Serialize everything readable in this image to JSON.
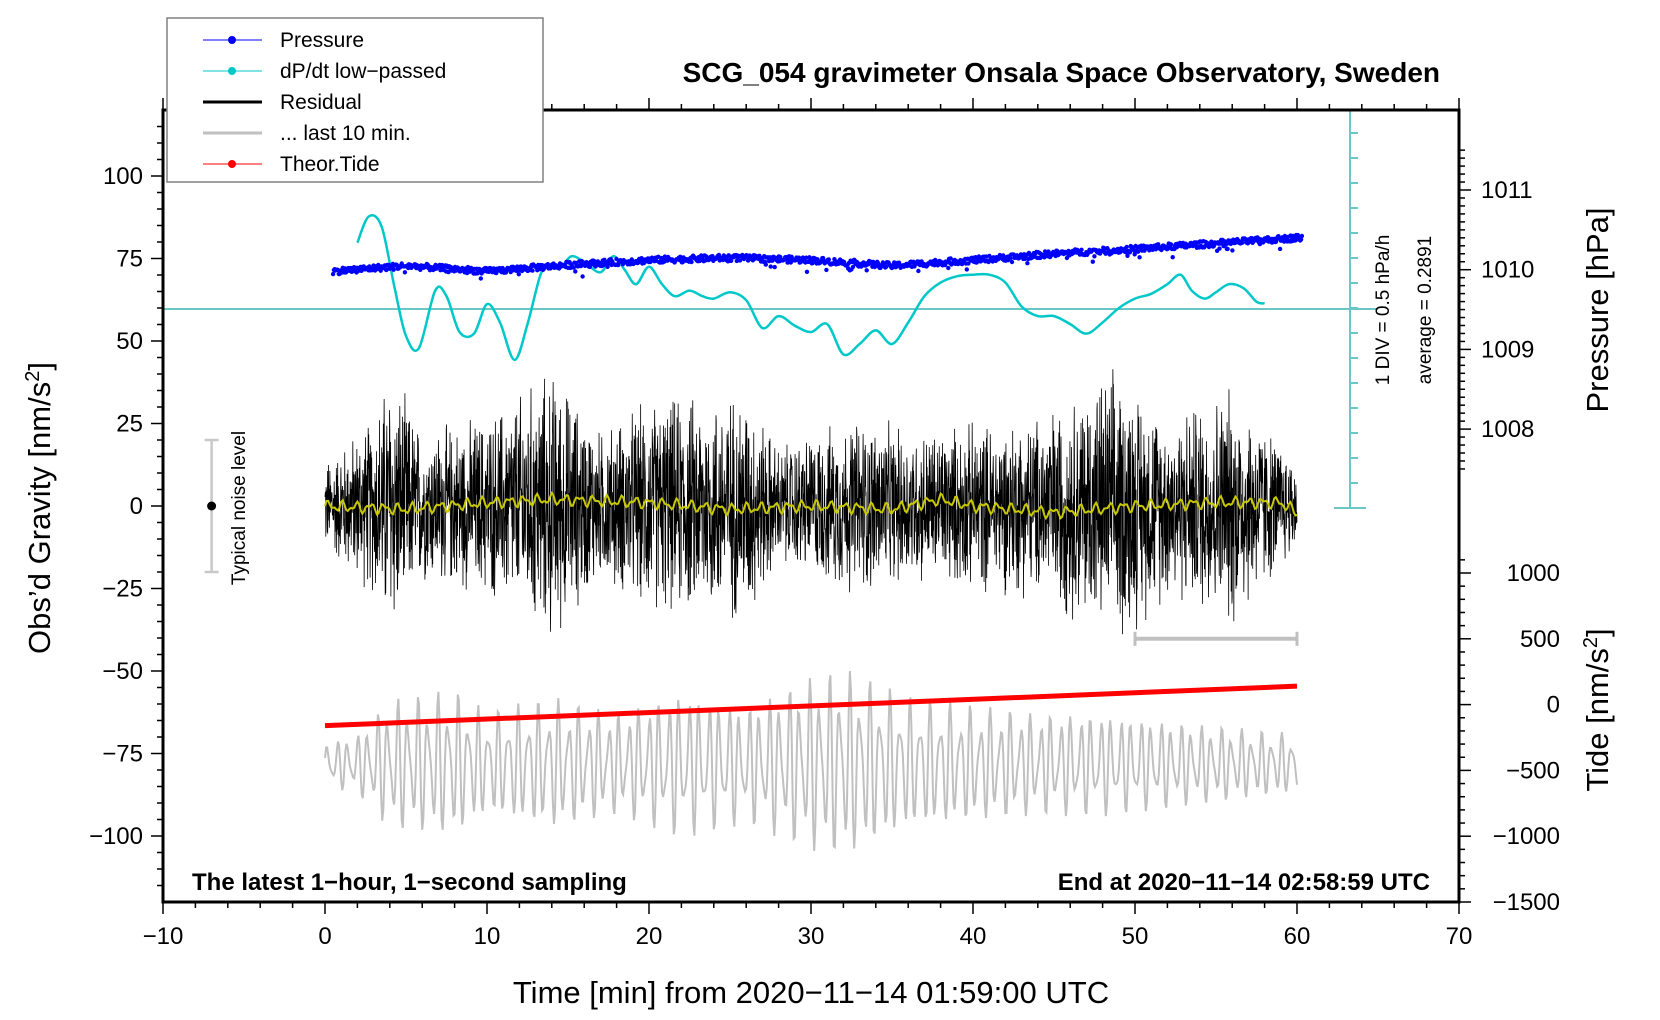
{
  "chart_data": {
    "type": "line",
    "title": "SCG_054 gravimeter Onsala Space Observatory, Sweden",
    "xlabel": "Time [min] from 2020−11−14 01:59:00 UTC",
    "ylabel_left": "Obs’d Gravity [nm/s²]",
    "ylabel_right_top": "Pressure [hPa]",
    "ylabel_right_bottom": "Tide [nm/s²]",
    "xlim": [
      -10,
      70
    ],
    "ylim_left": [
      -120,
      120
    ],
    "ylim_pressure_ref": [
      1008,
      1011
    ],
    "ylim_tide": [
      -1500,
      1000
    ],
    "x_ticks": [
      "−10",
      "0",
      "10",
      "20",
      "30",
      "40",
      "50",
      "60",
      "70"
    ],
    "x_tick_values": [
      -10,
      0,
      10,
      20,
      30,
      40,
      50,
      60,
      70
    ],
    "y_left_ticks": [
      "100",
      "75",
      "50",
      "25",
      "0",
      "−25",
      "−50",
      "−75",
      "−100"
    ],
    "y_left_tick_values": [
      100,
      75,
      50,
      25,
      0,
      -25,
      -50,
      -75,
      -100
    ],
    "y_pressure_ticks": [
      "1011",
      "1010",
      "1009",
      "1008"
    ],
    "y_pressure_tick_values": [
      1011,
      1010,
      1009,
      1008
    ],
    "y_tide_ticks": [
      "1000",
      "500",
      "0",
      "−500",
      "−1000",
      "−1500"
    ],
    "y_tide_tick_values": [
      1000,
      500,
      0,
      -500,
      -1000,
      -1500
    ],
    "legend": {
      "position": "top-left",
      "entries": [
        {
          "label": "Pressure",
          "color": "#0000ff",
          "marker": "dot"
        },
        {
          "label": "dP/dt low−passed",
          "color": "#00c8c8",
          "marker": "dot"
        },
        {
          "label": "Residual",
          "color": "#000000",
          "marker": "line"
        },
        {
          "label": "... last 10 min.",
          "color": "#c0c0c0",
          "marker": "line"
        },
        {
          "label": "Theor.Tide",
          "color": "#ff0000",
          "marker": "dot"
        }
      ]
    },
    "series": [
      {
        "name": "Pressure",
        "axis": "pressure",
        "color": "#0000ff",
        "x": [
          0.5,
          5,
          10,
          15,
          20,
          25,
          30,
          35,
          40,
          45,
          50,
          55,
          60
        ],
        "values": [
          1009.98,
          1010.05,
          1009.98,
          1010.06,
          1010.12,
          1010.15,
          1010.12,
          1010.05,
          1010.12,
          1010.2,
          1010.26,
          1010.33,
          1010.4
        ]
      },
      {
        "name": "dP/dt low-passed",
        "axis": "dpdt",
        "color": "#00c8c8",
        "x": [
          2,
          2.7,
          3.5,
          4.3,
          5,
          5.8,
          6.8,
          7.5,
          8.3,
          9.2,
          10,
          10.8,
          11.7,
          12.5,
          13.3,
          13.8,
          14.5,
          15.2,
          16,
          17,
          17.8,
          18.5,
          19.2,
          20,
          20.8,
          21.6,
          22.5,
          23.3,
          24,
          25,
          26,
          27,
          28,
          29,
          30,
          31,
          32,
          33,
          34,
          35,
          36,
          37,
          38,
          39,
          40,
          41,
          42,
          43,
          44,
          45,
          46,
          47,
          48,
          49,
          50,
          51,
          52,
          52.8,
          53.5,
          54.3,
          55,
          55.8,
          56.7,
          57.5,
          58
        ],
        "values": [
          1.12,
          1.45,
          1.32,
          0.55,
          -0.05,
          -0.2,
          0.52,
          0.45,
          0.0,
          -0.02,
          0.35,
          0.12,
          -0.35,
          0.1,
          0.72,
          0.82,
          0.8,
          0.95,
          0.88,
          0.75,
          0.95,
          0.78,
          0.6,
          0.82,
          0.6,
          0.45,
          0.52,
          0.45,
          0.42,
          0.5,
          0.4,
          0.05,
          0.2,
          0.08,
          0.0,
          0.1,
          -0.28,
          -0.15,
          0.02,
          -0.15,
          0.12,
          0.45,
          0.62,
          0.7,
          0.72,
          0.72,
          0.62,
          0.32,
          0.2,
          0.2,
          0.1,
          -0.02,
          0.12,
          0.3,
          0.42,
          0.48,
          0.6,
          0.72,
          0.52,
          0.42,
          0.5,
          0.6,
          0.55,
          0.38,
          0.36
        ]
      },
      {
        "name": "Residual",
        "axis": "left",
        "color": "#000000",
        "x_range": [
          0,
          60
        ],
        "amplitude_envelope": {
          "x": [
            0,
            3,
            4,
            6,
            10,
            14,
            17,
            20,
            26,
            28,
            33,
            36,
            44,
            47,
            49,
            52,
            56,
            60
          ],
          "values": [
            15,
            30,
            45,
            25,
            30,
            45,
            25,
            35,
            38,
            20,
            30,
            25,
            30,
            40,
            45,
            30,
            40,
            15
          ]
        }
      },
      {
        "name": "Residual smoothed",
        "axis": "left",
        "color": "#c8c800",
        "x": [
          0,
          5,
          10,
          14,
          20,
          25,
          30,
          35,
          38,
          40,
          45,
          50,
          55,
          59,
          60
        ],
        "values": [
          0,
          -1,
          1,
          2,
          1,
          -1,
          0,
          -1,
          2,
          0,
          -2,
          0,
          1,
          1,
          -2
        ]
      },
      {
        "name": "... last 10 min.",
        "axis": "tide",
        "color": "#c0c0c0",
        "x_range": [
          0,
          60
        ],
        "amplitude_envelope": {
          "x": [
            0,
            2,
            4,
            8,
            10,
            14,
            18,
            22,
            26,
            30,
            32,
            36,
            40,
            44,
            48,
            52,
            56,
            60
          ],
          "values": [
            300,
            400,
            900,
            1000,
            700,
            900,
            700,
            1000,
            800,
            1200,
            1300,
            900,
            800,
            700,
            700,
            600,
            500,
            400
          ]
        },
        "center": -450
      },
      {
        "name": "Theor.Tide",
        "axis": "tide",
        "color": "#ff0000",
        "x": [
          0,
          60
        ],
        "values": [
          -160,
          140
        ]
      }
    ],
    "dpdt_reference": {
      "label_div": "1 DIV = 0.5 hPa/h",
      "label_avg": "average = 0.2891",
      "average": 0.2891,
      "div": 0.5
    },
    "noise_bar": {
      "label": "Typical noise level",
      "center": 0,
      "half_range": 20,
      "x": -7
    },
    "last10_bar": {
      "x_range": [
        50,
        60
      ],
      "tide_level": 500
    },
    "annotations": {
      "bottom_left": "The latest 1−hour, 1−second sampling",
      "bottom_right": "End at 2020−11−14 02:58:59 UTC"
    }
  }
}
